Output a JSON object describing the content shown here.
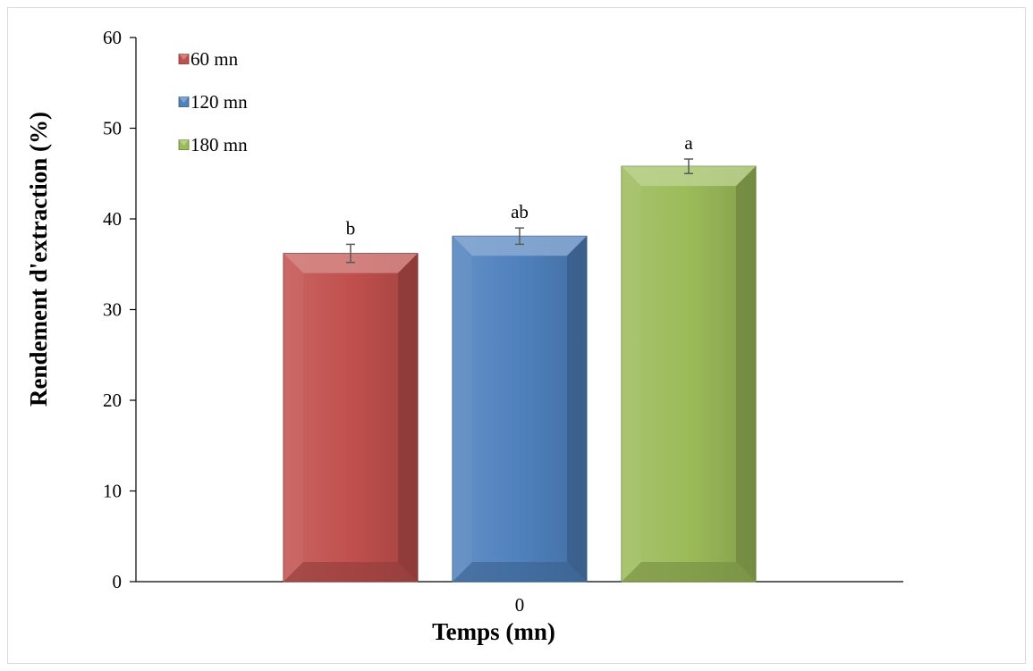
{
  "chart_data": {
    "type": "bar",
    "title": "",
    "xlabel": "Temps (mn)",
    "ylabel": "Rendement d'extraction (%)",
    "categories": [
      "0"
    ],
    "ylim": [
      0,
      60
    ],
    "yticks": [
      0,
      10,
      20,
      30,
      40,
      50,
      60
    ],
    "grid": false,
    "legend_position": "top-left",
    "series": [
      {
        "name": "60 mn",
        "values": [
          36.2
        ],
        "error": [
          1.0
        ],
        "label": "b",
        "color": "#C0504D"
      },
      {
        "name": "120 mn",
        "values": [
          38.1
        ],
        "error": [
          0.9
        ],
        "label": "ab",
        "color": "#4F81BD"
      },
      {
        "name": "180 mn",
        "values": [
          45.8
        ],
        "error": [
          0.8
        ],
        "label": "a",
        "color": "#9BBB59"
      }
    ]
  }
}
